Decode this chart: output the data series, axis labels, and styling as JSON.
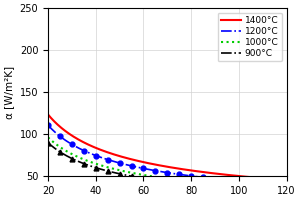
{
  "title": "",
  "xlabel": "",
  "ylabel": "α [W/m²K]",
  "xlim": [
    20,
    120
  ],
  "ylim": [
    50,
    250
  ],
  "yticks": [
    50,
    100,
    150,
    200,
    250
  ],
  "xticks": [
    20,
    40,
    60,
    80,
    100,
    120
  ],
  "series": [
    {
      "label": "1400°C",
      "color": "red",
      "linestyle": "-",
      "marker": null,
      "markersize": null,
      "linewidth": 1.5,
      "A": 660,
      "exp": 0.56
    },
    {
      "label": "1200°C",
      "color": "blue",
      "linestyle": "-.",
      "marker": "o",
      "markersize": 3.5,
      "linewidth": 1.2,
      "A": 610,
      "exp": 0.57
    },
    {
      "label": "1000°C",
      "color": "#00cc00",
      "linestyle": ":",
      "marker": null,
      "markersize": null,
      "linewidth": 1.5,
      "A": 530,
      "exp": 0.57
    },
    {
      "label": "900°C",
      "color": "black",
      "linestyle": "-.",
      "marker": "^",
      "markersize": 3.5,
      "linewidth": 1.2,
      "A": 510,
      "exp": 0.58
    }
  ],
  "marker_x": [
    20,
    25,
    30,
    35,
    40,
    45,
    50,
    55,
    60,
    65,
    70,
    75,
    80,
    85,
    90,
    95,
    100,
    105,
    110,
    115,
    120
  ],
  "legend_loc": "upper right",
  "grid": true,
  "background_color": "#ffffff"
}
